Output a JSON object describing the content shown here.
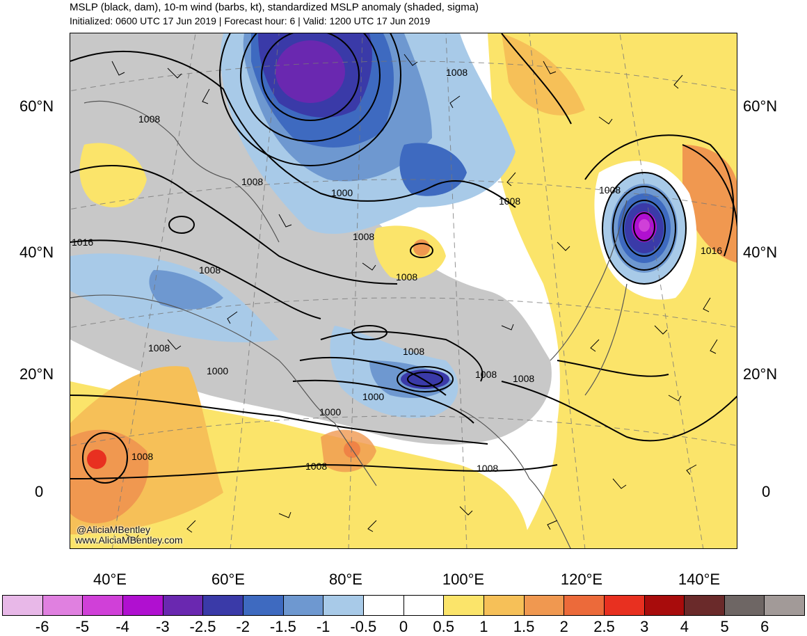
{
  "header": {
    "title": "MSLP (black, dam), 10-m wind (barbs, kt), standardized MSLP anomaly (shaded, sigma)",
    "subtitle": "Initialized: 0600 UTC 17 Jun 2019 | Forecast hour: 6 | Valid: 1200 UTC 17 Jun 2019"
  },
  "axes": {
    "lat_labels": [
      "60°N",
      "40°N",
      "20°N",
      "0"
    ],
    "lon_labels": [
      "40°E",
      "60°E",
      "80°E",
      "100°E",
      "120°E",
      "140°E"
    ]
  },
  "contour_labels": [
    "1008",
    "1008",
    "1008",
    "1000",
    "1008",
    "1008",
    "1016",
    "1008",
    "1008",
    "1016",
    "1008",
    "1000",
    "1008",
    "1008",
    "1008",
    "1000",
    "1000",
    "1008",
    "1008",
    "1008",
    "1008"
  ],
  "credits": {
    "handle": "@AliciaMBentley",
    "site": "www.AliciaMBentley.com"
  },
  "legend": {
    "colors": [
      "#e8b8e8",
      "#e080e0",
      "#d040d8",
      "#b010d0",
      "#6a28b0",
      "#3a3aa8",
      "#3e6ac0",
      "#6e98d0",
      "#a8cae8",
      "#ffffff",
      "#ffffff",
      "#fbe46a",
      "#f6c058",
      "#f09850",
      "#ec6a3a",
      "#e83020",
      "#a80c0c",
      "#6a2a2a",
      "#6e6664",
      "#a29a98"
    ],
    "ticks": [
      "-6",
      "-5",
      "-4",
      "-3",
      "-2.5",
      "-2",
      "-1.5",
      "-1",
      "-0.5",
      "0",
      "0.5",
      "1",
      "1.5",
      "2",
      "2.5",
      "3",
      "4",
      "5",
      "6"
    ]
  },
  "map_colors": {
    "gray": "#c8c8c8",
    "yellow": "#fbe46a",
    "lightorange": "#f6c058",
    "orange": "#f09850",
    "redorange": "#ec6a3a",
    "red": "#e83020",
    "lightblue": "#a8cae8",
    "blue": "#6e98d0",
    "midblue": "#3e6ac0",
    "darkblue": "#3a3aa8",
    "purple": "#6a28b0",
    "magenta": "#d040d8"
  }
}
